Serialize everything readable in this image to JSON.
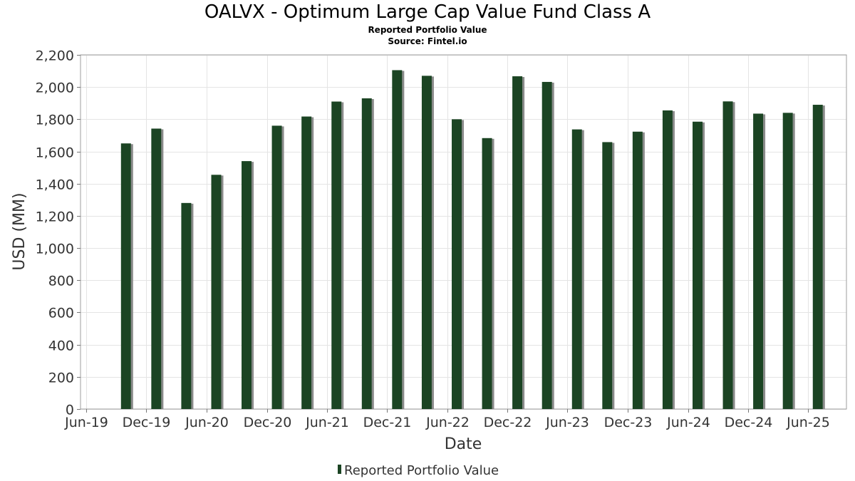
{
  "chart_data": {
    "type": "bar",
    "title": "OALVX - Optimum Large Cap Value Fund Class A",
    "subtitle": "Reported Portfolio Value",
    "source": "Source: Fintel.io",
    "xlabel": "Date",
    "ylabel": "USD (MM)",
    "ylim": [
      0,
      2200
    ],
    "yticks": [
      0,
      200,
      400,
      600,
      800,
      1000,
      1200,
      1400,
      1600,
      1800,
      2000,
      2200
    ],
    "ytick_labels": [
      "0",
      "200",
      "400",
      "600",
      "800",
      "1,000",
      "1,200",
      "1,400",
      "1,600",
      "1,800",
      "2,000",
      "2,200"
    ],
    "xlim": [
      "2019-05-15",
      "2025-09-25"
    ],
    "xticks": [
      "2019-06-01",
      "2019-12-01",
      "2020-06-01",
      "2020-12-01",
      "2021-06-01",
      "2021-12-01",
      "2022-06-01",
      "2022-12-01",
      "2023-06-01",
      "2023-12-01",
      "2024-06-01",
      "2024-12-01",
      "2025-06-01"
    ],
    "xtick_labels": [
      "Jun-19",
      "Dec-19",
      "Jun-20",
      "Dec-20",
      "Jun-21",
      "Dec-21",
      "Jun-22",
      "Dec-22",
      "Jun-23",
      "Dec-23",
      "Jun-24",
      "Dec-24",
      "Jun-25"
    ],
    "grid": true,
    "legend_position": "bottom-center",
    "bar_color": "#1b4423",
    "series": [
      {
        "name": "Reported Portfolio Value",
        "x": [
          "2019-09-30",
          "2019-12-31",
          "2020-03-31",
          "2020-06-30",
          "2020-09-30",
          "2020-12-31",
          "2021-03-31",
          "2021-06-30",
          "2021-09-30",
          "2021-12-31",
          "2022-03-31",
          "2022-06-30",
          "2022-09-30",
          "2022-12-31",
          "2023-03-31",
          "2023-06-30",
          "2023-09-30",
          "2023-12-31",
          "2024-03-31",
          "2024-06-30",
          "2024-09-30",
          "2024-12-31",
          "2025-03-31",
          "2025-06-30"
        ],
        "values": [
          1650,
          1742,
          1280,
          1455,
          1540,
          1760,
          1817,
          1910,
          1930,
          2105,
          2070,
          1800,
          1683,
          2067,
          2032,
          1737,
          1658,
          1723,
          1855,
          1785,
          1911,
          1835,
          1840,
          1890
        ]
      }
    ]
  }
}
